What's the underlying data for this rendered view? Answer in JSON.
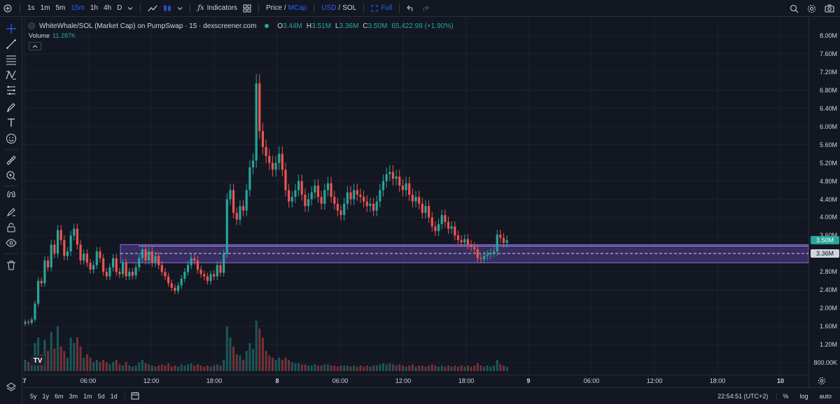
{
  "toolbar": {
    "intervals": [
      "1s",
      "1m",
      "5m",
      "15m",
      "1h",
      "4h",
      "D"
    ],
    "active_interval": "15m",
    "indicators_label": "Indicators",
    "price_label": "Price",
    "slash": "/",
    "mcap_label": "MCap",
    "usd_label": "USD",
    "sol_label": "SOL",
    "full_label": "Full"
  },
  "legend": {
    "title": "WhiteWhale/SOL (Market Cap) on PumpSwap · 15 · dexscreener.com",
    "o_key": "O",
    "o_val": "3.44M",
    "h_key": "H",
    "h_val": "3.51M",
    "l_key": "L",
    "l_val": "3.36M",
    "c_key": "C",
    "c_val": "3.50M",
    "change": "65,422.98 (+1.90%)",
    "volume_label": "Volume",
    "volume_value": "11.287K"
  },
  "price_axis": {
    "labels": [
      "8.00M",
      "7.60M",
      "7.20M",
      "6.80M",
      "6.40M",
      "6.00M",
      "5.60M",
      "5.20M",
      "4.80M",
      "4.40M",
      "4.00M",
      "3.60M",
      "3.20M",
      "2.80M",
      "2.40M",
      "2.00M",
      "1.60M",
      "1.20M",
      "800.00K"
    ],
    "last_price_tag": "3.50M",
    "line_price_tag": "3.36M"
  },
  "time_axis": {
    "labels": [
      "7",
      "06:00",
      "12:00",
      "18:00",
      "8",
      "06:00",
      "12:00",
      "18:00",
      "9",
      "06:00",
      "12:00",
      "18:00",
      "10"
    ]
  },
  "bottombar": {
    "ranges": [
      "5y",
      "1y",
      "6m",
      "3m",
      "1m",
      "5d",
      "1d"
    ],
    "clock": "22:54:51 (UTC+2)",
    "percent": "%",
    "log": "log",
    "auto": "auto"
  },
  "colors": {
    "up": "#26a69a",
    "down": "#ef5350",
    "zone": "#7b57d6",
    "accent": "#2962ff"
  },
  "chart_data": {
    "type": "candlestick",
    "unit": "M",
    "ylim": [
      0.6,
      8.2
    ],
    "zone": [
      3.0,
      3.4
    ],
    "reference_line": 3.36,
    "candles": [
      {
        "t": 0,
        "o": 1.66,
        "c": 1.7,
        "v": 0.1
      },
      {
        "t": 1,
        "o": 1.7,
        "c": 1.68,
        "v": 0.08
      },
      {
        "t": 2,
        "o": 1.68,
        "c": 1.75,
        "v": 0.12
      },
      {
        "t": 3,
        "o": 1.75,
        "c": 2.1,
        "v": 0.25
      },
      {
        "t": 4,
        "o": 2.1,
        "c": 2.6,
        "v": 0.3
      },
      {
        "t": 5,
        "o": 2.6,
        "c": 2.55,
        "v": 0.15
      },
      {
        "t": 6,
        "o": 2.55,
        "c": 3.05,
        "v": 0.28
      },
      {
        "t": 7,
        "o": 3.05,
        "c": 2.9,
        "v": 0.18
      },
      {
        "t": 8,
        "o": 2.9,
        "c": 3.4,
        "v": 0.35
      },
      {
        "t": 9,
        "o": 3.4,
        "c": 3.2,
        "v": 0.2
      },
      {
        "t": 10,
        "o": 3.2,
        "c": 3.72,
        "v": 0.4
      },
      {
        "t": 11,
        "o": 3.72,
        "c": 3.5,
        "v": 0.22
      },
      {
        "t": 12,
        "o": 3.5,
        "c": 3.15,
        "v": 0.18
      },
      {
        "t": 13,
        "o": 3.15,
        "c": 3.25,
        "v": 0.12
      },
      {
        "t": 14,
        "o": 3.25,
        "c": 3.6,
        "v": 0.3
      },
      {
        "t": 15,
        "o": 3.6,
        "c": 3.75,
        "v": 0.25
      },
      {
        "t": 16,
        "o": 3.75,
        "c": 3.4,
        "v": 0.3
      },
      {
        "t": 17,
        "o": 3.4,
        "c": 3.05,
        "v": 0.22
      },
      {
        "t": 18,
        "o": 3.05,
        "c": 3.2,
        "v": 0.12
      },
      {
        "t": 19,
        "o": 3.2,
        "c": 3.0,
        "v": 0.15
      },
      {
        "t": 20,
        "o": 3.0,
        "c": 2.85,
        "v": 0.12
      },
      {
        "t": 21,
        "o": 2.85,
        "c": 2.95,
        "v": 0.08
      },
      {
        "t": 22,
        "o": 2.95,
        "c": 3.25,
        "v": 0.1
      },
      {
        "t": 23,
        "o": 3.25,
        "c": 3.1,
        "v": 0.08
      },
      {
        "t": 24,
        "o": 3.1,
        "c": 2.8,
        "v": 0.1
      },
      {
        "t": 25,
        "o": 2.8,
        "c": 2.7,
        "v": 0.08
      },
      {
        "t": 26,
        "o": 2.7,
        "c": 2.9,
        "v": 0.06
      },
      {
        "t": 27,
        "o": 2.9,
        "c": 3.1,
        "v": 0.08
      },
      {
        "t": 28,
        "o": 3.1,
        "c": 2.8,
        "v": 0.1
      },
      {
        "t": 29,
        "o": 2.8,
        "c": 2.75,
        "v": 0.06
      },
      {
        "t": 30,
        "o": 2.75,
        "c": 3.0,
        "v": 0.05
      },
      {
        "t": 31,
        "o": 3.0,
        "c": 2.7,
        "v": 0.08
      },
      {
        "t": 32,
        "o": 2.7,
        "c": 2.8,
        "v": 0.05
      },
      {
        "t": 33,
        "o": 2.8,
        "c": 2.72,
        "v": 0.04
      },
      {
        "t": 34,
        "o": 2.72,
        "c": 2.9,
        "v": 0.05
      },
      {
        "t": 35,
        "o": 2.9,
        "c": 3.1,
        "v": 0.08
      },
      {
        "t": 36,
        "o": 3.1,
        "c": 3.3,
        "v": 0.1
      },
      {
        "t": 37,
        "o": 3.3,
        "c": 3.05,
        "v": 0.07
      },
      {
        "t": 38,
        "o": 3.05,
        "c": 3.25,
        "v": 0.06
      },
      {
        "t": 39,
        "o": 3.25,
        "c": 3.0,
        "v": 0.05
      },
      {
        "t": 40,
        "o": 3.0,
        "c": 3.15,
        "v": 0.04
      },
      {
        "t": 41,
        "o": 3.15,
        "c": 2.95,
        "v": 0.05
      },
      {
        "t": 42,
        "o": 2.95,
        "c": 2.8,
        "v": 0.06
      },
      {
        "t": 43,
        "o": 2.8,
        "c": 2.7,
        "v": 0.05
      },
      {
        "t": 44,
        "o": 2.7,
        "c": 2.55,
        "v": 0.07
      },
      {
        "t": 45,
        "o": 2.55,
        "c": 2.45,
        "v": 0.04
      },
      {
        "t": 46,
        "o": 2.45,
        "c": 2.38,
        "v": 0.05
      },
      {
        "t": 47,
        "o": 2.38,
        "c": 2.5,
        "v": 0.04
      },
      {
        "t": 48,
        "o": 2.5,
        "c": 2.65,
        "v": 0.06
      },
      {
        "t": 49,
        "o": 2.65,
        "c": 2.8,
        "v": 0.05
      },
      {
        "t": 50,
        "o": 2.8,
        "c": 2.95,
        "v": 0.06
      },
      {
        "t": 51,
        "o": 2.95,
        "c": 3.1,
        "v": 0.07
      },
      {
        "t": 52,
        "o": 3.1,
        "c": 3.05,
        "v": 0.05
      },
      {
        "t": 53,
        "o": 3.05,
        "c": 2.85,
        "v": 0.06
      },
      {
        "t": 54,
        "o": 2.85,
        "c": 2.75,
        "v": 0.05
      },
      {
        "t": 55,
        "o": 2.75,
        "c": 2.7,
        "v": 0.04
      },
      {
        "t": 56,
        "o": 2.7,
        "c": 2.6,
        "v": 0.05
      },
      {
        "t": 57,
        "o": 2.6,
        "c": 2.75,
        "v": 0.04
      },
      {
        "t": 58,
        "o": 2.75,
        "c": 2.7,
        "v": 0.05
      },
      {
        "t": 59,
        "o": 2.7,
        "c": 2.95,
        "v": 0.06
      },
      {
        "t": 60,
        "o": 2.95,
        "c": 2.78,
        "v": 0.05
      },
      {
        "t": 61,
        "o": 2.78,
        "c": 3.2,
        "v": 0.1
      },
      {
        "t": 62,
        "o": 3.2,
        "c": 4.4,
        "v": 0.4
      },
      {
        "t": 63,
        "o": 4.4,
        "c": 4.6,
        "v": 0.3
      },
      {
        "t": 64,
        "o": 4.6,
        "c": 4.1,
        "v": 0.22
      },
      {
        "t": 65,
        "o": 4.1,
        "c": 3.95,
        "v": 0.15
      },
      {
        "t": 66,
        "o": 3.95,
        "c": 4.25,
        "v": 0.14
      },
      {
        "t": 67,
        "o": 4.25,
        "c": 4.15,
        "v": 0.1
      },
      {
        "t": 68,
        "o": 4.15,
        "c": 4.6,
        "v": 0.18
      },
      {
        "t": 69,
        "o": 4.6,
        "c": 5.1,
        "v": 0.25
      },
      {
        "t": 70,
        "o": 5.1,
        "c": 5.25,
        "v": 0.2
      },
      {
        "t": 71,
        "o": 5.25,
        "c": 6.95,
        "v": 0.45
      },
      {
        "t": 72,
        "o": 6.95,
        "c": 5.9,
        "v": 0.38
      },
      {
        "t": 73,
        "o": 5.9,
        "c": 5.55,
        "v": 0.3
      },
      {
        "t": 74,
        "o": 5.55,
        "c": 5.35,
        "v": 0.18
      },
      {
        "t": 75,
        "o": 5.35,
        "c": 5.2,
        "v": 0.14
      },
      {
        "t": 76,
        "o": 5.2,
        "c": 5.05,
        "v": 0.12
      },
      {
        "t": 77,
        "o": 5.05,
        "c": 5.2,
        "v": 0.1
      },
      {
        "t": 78,
        "o": 5.2,
        "c": 5.4,
        "v": 0.12
      },
      {
        "t": 79,
        "o": 5.4,
        "c": 5.05,
        "v": 0.1
      },
      {
        "t": 80,
        "o": 5.05,
        "c": 4.6,
        "v": 0.12
      },
      {
        "t": 81,
        "o": 4.6,
        "c": 4.35,
        "v": 0.1
      },
      {
        "t": 82,
        "o": 4.35,
        "c": 4.45,
        "v": 0.08
      },
      {
        "t": 83,
        "o": 4.45,
        "c": 4.6,
        "v": 0.07
      },
      {
        "t": 84,
        "o": 4.6,
        "c": 4.8,
        "v": 0.07
      },
      {
        "t": 85,
        "o": 4.8,
        "c": 4.5,
        "v": 0.06
      },
      {
        "t": 86,
        "o": 4.5,
        "c": 4.25,
        "v": 0.06
      },
      {
        "t": 87,
        "o": 4.25,
        "c": 4.4,
        "v": 0.05
      },
      {
        "t": 88,
        "o": 4.4,
        "c": 4.55,
        "v": 0.05
      },
      {
        "t": 89,
        "o": 4.55,
        "c": 4.7,
        "v": 0.06
      },
      {
        "t": 90,
        "o": 4.7,
        "c": 4.45,
        "v": 0.05
      },
      {
        "t": 91,
        "o": 4.45,
        "c": 4.3,
        "v": 0.05
      },
      {
        "t": 92,
        "o": 4.3,
        "c": 4.6,
        "v": 0.06
      },
      {
        "t": 93,
        "o": 4.6,
        "c": 4.75,
        "v": 0.06
      },
      {
        "t": 94,
        "o": 4.75,
        "c": 4.45,
        "v": 0.05
      },
      {
        "t": 95,
        "o": 4.45,
        "c": 4.3,
        "v": 0.05
      },
      {
        "t": 96,
        "o": 4.3,
        "c": 4.15,
        "v": 0.04
      },
      {
        "t": 97,
        "o": 4.15,
        "c": 4.05,
        "v": 0.05
      },
      {
        "t": 98,
        "o": 4.05,
        "c": 4.3,
        "v": 0.05
      },
      {
        "t": 99,
        "o": 4.3,
        "c": 4.55,
        "v": 0.05
      },
      {
        "t": 100,
        "o": 4.55,
        "c": 4.4,
        "v": 0.04
      },
      {
        "t": 101,
        "o": 4.4,
        "c": 4.6,
        "v": 0.05
      },
      {
        "t": 102,
        "o": 4.6,
        "c": 4.5,
        "v": 0.04
      },
      {
        "t": 103,
        "o": 4.5,
        "c": 4.45,
        "v": 0.05
      },
      {
        "t": 104,
        "o": 4.45,
        "c": 4.35,
        "v": 0.04
      },
      {
        "t": 105,
        "o": 4.35,
        "c": 4.25,
        "v": 0.05
      },
      {
        "t": 106,
        "o": 4.25,
        "c": 4.3,
        "v": 0.04
      },
      {
        "t": 107,
        "o": 4.3,
        "c": 4.15,
        "v": 0.05
      },
      {
        "t": 108,
        "o": 4.15,
        "c": 4.35,
        "v": 0.05
      },
      {
        "t": 109,
        "o": 4.35,
        "c": 4.6,
        "v": 0.06
      },
      {
        "t": 110,
        "o": 4.6,
        "c": 4.8,
        "v": 0.07
      },
      {
        "t": 111,
        "o": 4.8,
        "c": 4.95,
        "v": 0.06
      },
      {
        "t": 112,
        "o": 4.95,
        "c": 5.0,
        "v": 0.07
      },
      {
        "t": 113,
        "o": 5.0,
        "c": 4.85,
        "v": 0.06
      },
      {
        "t": 114,
        "o": 4.85,
        "c": 4.9,
        "v": 0.05
      },
      {
        "t": 115,
        "o": 4.9,
        "c": 4.7,
        "v": 0.06
      },
      {
        "t": 116,
        "o": 4.7,
        "c": 4.6,
        "v": 0.05
      },
      {
        "t": 117,
        "o": 4.6,
        "c": 4.75,
        "v": 0.04
      },
      {
        "t": 118,
        "o": 4.75,
        "c": 4.5,
        "v": 0.05
      },
      {
        "t": 119,
        "o": 4.5,
        "c": 4.35,
        "v": 0.06
      },
      {
        "t": 120,
        "o": 4.35,
        "c": 4.45,
        "v": 0.04
      },
      {
        "t": 121,
        "o": 4.45,
        "c": 4.3,
        "v": 0.05
      },
      {
        "t": 122,
        "o": 4.3,
        "c": 4.1,
        "v": 0.05
      },
      {
        "t": 123,
        "o": 4.1,
        "c": 4.25,
        "v": 0.04
      },
      {
        "t": 124,
        "o": 4.25,
        "c": 4.0,
        "v": 0.05
      },
      {
        "t": 125,
        "o": 4.0,
        "c": 3.8,
        "v": 0.06
      },
      {
        "t": 126,
        "o": 3.8,
        "c": 3.7,
        "v": 0.05
      },
      {
        "t": 127,
        "o": 3.7,
        "c": 3.85,
        "v": 0.04
      },
      {
        "t": 128,
        "o": 3.85,
        "c": 4.05,
        "v": 0.05
      },
      {
        "t": 129,
        "o": 4.05,
        "c": 3.9,
        "v": 0.04
      },
      {
        "t": 130,
        "o": 3.9,
        "c": 3.75,
        "v": 0.05
      },
      {
        "t": 131,
        "o": 3.75,
        "c": 3.8,
        "v": 0.04
      },
      {
        "t": 132,
        "o": 3.8,
        "c": 3.6,
        "v": 0.05
      },
      {
        "t": 133,
        "o": 3.6,
        "c": 3.5,
        "v": 0.04
      },
      {
        "t": 134,
        "o": 3.5,
        "c": 3.45,
        "v": 0.05
      },
      {
        "t": 135,
        "o": 3.45,
        "c": 3.52,
        "v": 0.04
      },
      {
        "t": 136,
        "o": 3.52,
        "c": 3.4,
        "v": 0.05
      },
      {
        "t": 137,
        "o": 3.4,
        "c": 3.35,
        "v": 0.04
      },
      {
        "t": 138,
        "o": 3.35,
        "c": 3.3,
        "v": 0.05
      },
      {
        "t": 139,
        "o": 3.3,
        "c": 3.1,
        "v": 0.07
      },
      {
        "t": 140,
        "o": 3.1,
        "c": 3.08,
        "v": 0.05
      },
      {
        "t": 141,
        "o": 3.08,
        "c": 3.15,
        "v": 0.04
      },
      {
        "t": 142,
        "o": 3.15,
        "c": 3.18,
        "v": 0.05
      },
      {
        "t": 143,
        "o": 3.18,
        "c": 3.22,
        "v": 0.04
      },
      {
        "t": 144,
        "o": 3.22,
        "c": 3.25,
        "v": 0.05
      },
      {
        "t": 145,
        "o": 3.25,
        "c": 3.62,
        "v": 0.1
      },
      {
        "t": 146,
        "o": 3.62,
        "c": 3.55,
        "v": 0.06
      },
      {
        "t": 147,
        "o": 3.55,
        "c": 3.44,
        "v": 0.05
      },
      {
        "t": 148,
        "o": 3.44,
        "c": 3.5,
        "v": 0.04
      }
    ]
  }
}
